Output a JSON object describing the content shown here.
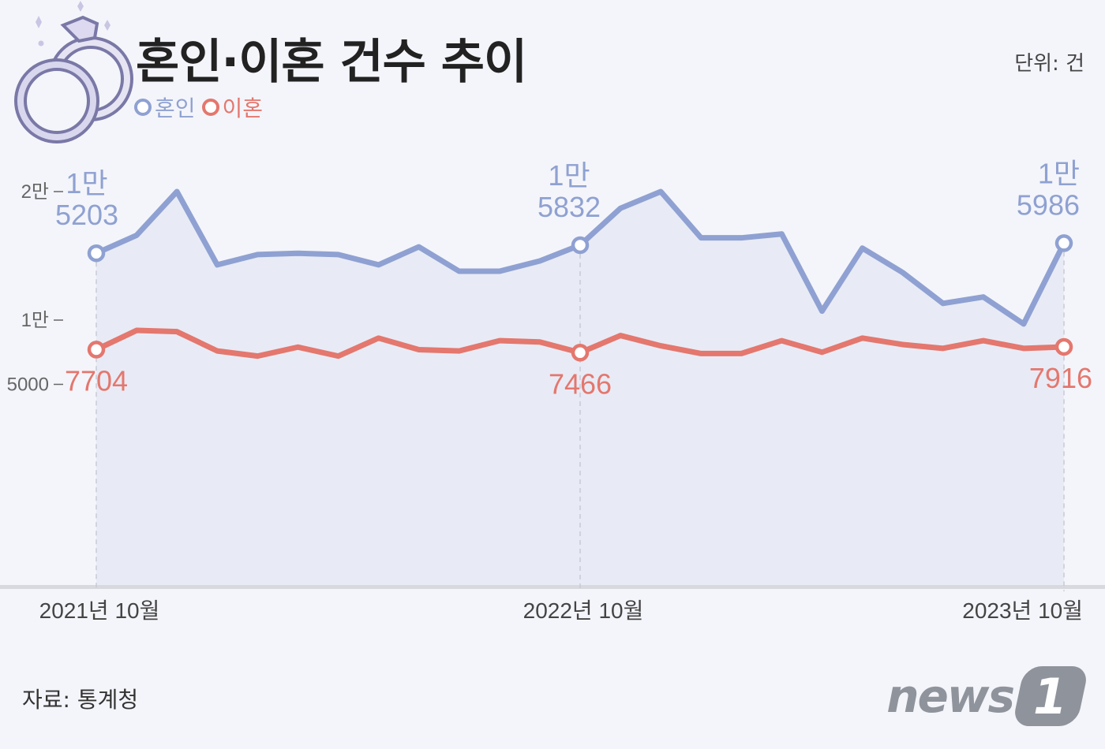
{
  "title": "혼인·이혼 건수 추이",
  "unit_label": "단위: 건",
  "legend": {
    "marriage": "혼인",
    "divorce": "이혼"
  },
  "source": "자료: 통계청",
  "logo": {
    "text": "news",
    "badge": "1"
  },
  "colors": {
    "marriage": "#8fa1d2",
    "divorce": "#e4776e",
    "area": "#e8ebf5",
    "background": "#f4f5fa"
  },
  "icon": "wedding-rings-icon",
  "chart_data": {
    "type": "line",
    "title": "혼인·이혼 건수 추이",
    "unit": "건",
    "ylim": [
      0,
      21000
    ],
    "yticks": [
      {
        "value": 20000,
        "label": "2만"
      },
      {
        "value": 10000,
        "label": "1만"
      },
      {
        "value": 5000,
        "label": "5000"
      }
    ],
    "x_labels": [
      {
        "index": 0,
        "label": "2021년 10월"
      },
      {
        "index": 12,
        "label": "2022년 10월"
      },
      {
        "index": 24,
        "label": "2023년 10월"
      }
    ],
    "series": [
      {
        "name": "혼인",
        "values": [
          15203,
          16600,
          20000,
          14300,
          15100,
          15200,
          15100,
          14300,
          15700,
          13800,
          13800,
          14600,
          15832,
          18700,
          20000,
          16400,
          16400,
          16700,
          10700,
          15600,
          13700,
          11300,
          11800,
          9700,
          15986
        ],
        "labels": [
          {
            "index": 0,
            "line1": "1만",
            "line2": "5203"
          },
          {
            "index": 12,
            "line1": "1만",
            "line2": "5832"
          },
          {
            "index": 24,
            "line1": "1만",
            "line2": "5986"
          }
        ]
      },
      {
        "name": "이혼",
        "values": [
          7704,
          9200,
          9100,
          7600,
          7200,
          7900,
          7200,
          8600,
          7700,
          7600,
          8400,
          8300,
          7466,
          8800,
          8000,
          7400,
          7400,
          8400,
          7500,
          8600,
          8100,
          7800,
          8400,
          7800,
          7916
        ],
        "labels": [
          {
            "index": 0,
            "text": "7704"
          },
          {
            "index": 12,
            "text": "7466"
          },
          {
            "index": 24,
            "text": "7916"
          }
        ]
      }
    ]
  }
}
